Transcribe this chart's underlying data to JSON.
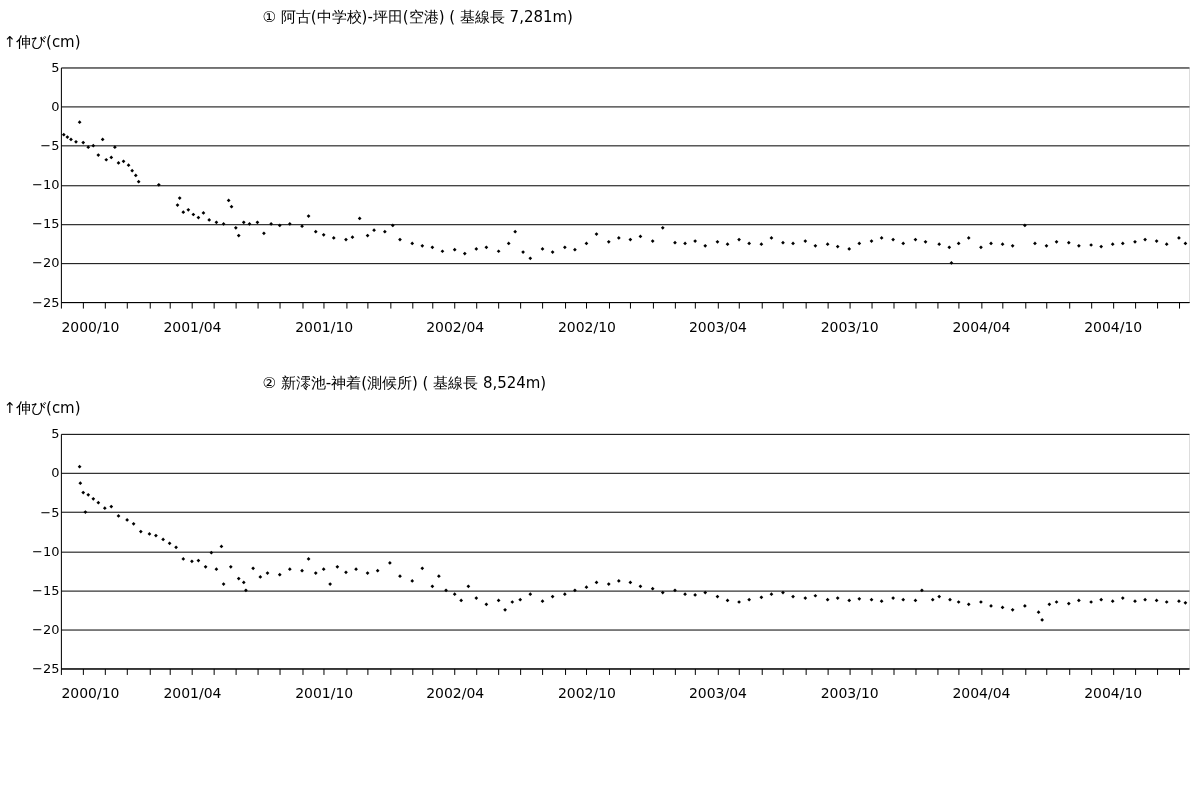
{
  "chart_data": [
    {
      "type": "scatter",
      "title": "①  阿古(中学校)-坪田(空港)          ( 基線長    7,281m)",
      "ylabel": "↑伸び(cm)",
      "marker": "diamond",
      "grid": "y",
      "xlim": [
        "2000-10-01",
        "2005-01-15"
      ],
      "ylim": [
        -25,
        5
      ],
      "yticks": [
        -25,
        -20,
        -15,
        -10,
        -5,
        0,
        5
      ],
      "xticks": [
        {
          "value": "2000-10",
          "label": "2000/10"
        },
        {
          "value": "2000-11",
          "label": null
        },
        {
          "value": "2000-12",
          "label": null
        },
        {
          "value": "2001-01",
          "label": null
        },
        {
          "value": "2001-02",
          "label": null
        },
        {
          "value": "2001-03",
          "label": null
        },
        {
          "value": "2001-04",
          "label": "2001/04"
        },
        {
          "value": "2001-05",
          "label": null
        },
        {
          "value": "2001-06",
          "label": null
        },
        {
          "value": "2001-07",
          "label": null
        },
        {
          "value": "2001-08",
          "label": null
        },
        {
          "value": "2001-09",
          "label": null
        },
        {
          "value": "2001-10",
          "label": "2001/10"
        },
        {
          "value": "2001-11",
          "label": null
        },
        {
          "value": "2001-12",
          "label": null
        },
        {
          "value": "2002-01",
          "label": null
        },
        {
          "value": "2002-02",
          "label": null
        },
        {
          "value": "2002-03",
          "label": null
        },
        {
          "value": "2002-04",
          "label": "2002/04"
        },
        {
          "value": "2002-05",
          "label": null
        },
        {
          "value": "2002-06",
          "label": null
        },
        {
          "value": "2002-07",
          "label": null
        },
        {
          "value": "2002-08",
          "label": null
        },
        {
          "value": "2002-09",
          "label": null
        },
        {
          "value": "2002-10",
          "label": "2002/10"
        },
        {
          "value": "2002-11",
          "label": null
        },
        {
          "value": "2002-12",
          "label": null
        },
        {
          "value": "2003-01",
          "label": null
        },
        {
          "value": "2003-02",
          "label": null
        },
        {
          "value": "2003-03",
          "label": null
        },
        {
          "value": "2003-04",
          "label": "2003/04"
        },
        {
          "value": "2003-05",
          "label": null
        },
        {
          "value": "2003-06",
          "label": null
        },
        {
          "value": "2003-07",
          "label": null
        },
        {
          "value": "2003-08",
          "label": null
        },
        {
          "value": "2003-09",
          "label": null
        },
        {
          "value": "2003-10",
          "label": "2003/10"
        },
        {
          "value": "2003-11",
          "label": null
        },
        {
          "value": "2003-12",
          "label": null
        },
        {
          "value": "2004-01",
          "label": null
        },
        {
          "value": "2004-02",
          "label": null
        },
        {
          "value": "2004-03",
          "label": null
        },
        {
          "value": "2004-04",
          "label": "2004/04"
        },
        {
          "value": "2004-05",
          "label": null
        },
        {
          "value": "2004-06",
          "label": null
        },
        {
          "value": "2004-07",
          "label": null
        },
        {
          "value": "2004-08",
          "label": null
        },
        {
          "value": "2004-09",
          "label": null
        },
        {
          "value": "2004-10",
          "label": "2004/10"
        },
        {
          "value": "2004-11",
          "label": null
        },
        {
          "value": "2004-12",
          "label": null
        },
        {
          "value": "2005-01",
          "label": null
        }
      ],
      "series": [
        {
          "color": "#000000",
          "x": [
            "2000-10-05",
            "2000-10-10",
            "2000-10-15",
            "2000-10-22",
            "2000-10-27",
            "2000-11-01",
            "2000-11-08",
            "2000-11-15",
            "2000-11-22",
            "2000-11-28",
            "2000-12-03",
            "2000-12-10",
            "2000-12-15",
            "2000-12-20",
            "2000-12-27",
            "2001-01-03",
            "2001-01-08",
            "2001-01-13",
            "2001-01-17",
            "2001-02-14",
            "2001-03-12",
            "2001-03-15",
            "2001-03-20",
            "2001-03-27",
            "2001-04-03",
            "2001-04-10",
            "2001-04-17",
            "2001-04-25",
            "2001-05-05",
            "2001-05-15",
            "2001-05-22",
            "2001-05-26",
            "2001-06-01",
            "2001-06-05",
            "2001-06-12",
            "2001-06-20",
            "2001-07-01",
            "2001-07-10",
            "2001-07-20",
            "2001-08-01",
            "2001-08-15",
            "2001-09-01",
            "2001-09-10",
            "2001-09-20",
            "2001-10-01",
            "2001-10-15",
            "2001-11-01",
            "2001-11-10",
            "2001-11-20",
            "2001-12-01",
            "2001-12-10",
            "2001-12-25",
            "2002-01-05",
            "2002-01-15",
            "2002-02-01",
            "2002-02-15",
            "2002-03-01",
            "2002-03-15",
            "2002-04-01",
            "2002-04-15",
            "2002-05-01",
            "2002-05-15",
            "2002-06-01",
            "2002-06-15",
            "2002-06-24",
            "2002-07-05",
            "2002-07-15",
            "2002-08-01",
            "2002-08-15",
            "2002-09-01",
            "2002-09-15",
            "2002-10-01",
            "2002-10-15",
            "2002-11-01",
            "2002-11-15",
            "2002-12-01",
            "2002-12-15",
            "2003-01-01",
            "2003-01-15",
            "2003-02-01",
            "2003-02-15",
            "2003-03-01",
            "2003-03-15",
            "2003-04-01",
            "2003-04-15",
            "2003-05-01",
            "2003-05-15",
            "2003-06-01",
            "2003-06-15",
            "2003-07-01",
            "2003-07-15",
            "2003-08-01",
            "2003-08-15",
            "2003-09-01",
            "2003-09-15",
            "2003-10-01",
            "2003-10-15",
            "2003-11-01",
            "2003-11-15",
            "2003-12-01",
            "2003-12-15",
            "2004-01-01",
            "2004-01-15",
            "2004-02-03",
            "2004-02-17",
            "2004-02-20",
            "2004-03-01",
            "2004-03-15",
            "2004-04-01",
            "2004-04-15",
            "2004-05-01",
            "2004-05-15",
            "2004-06-01",
            "2004-06-15",
            "2004-07-01",
            "2004-07-15",
            "2004-08-01",
            "2004-08-15",
            "2004-09-01",
            "2004-09-15",
            "2004-10-01",
            "2004-10-15",
            "2004-11-01",
            "2004-11-15",
            "2004-12-01",
            "2004-12-15",
            "2005-01-01",
            "2005-01-10"
          ],
          "values": [
            -3.6,
            -3.9,
            -4.2,
            -4.5,
            -2.0,
            -4.6,
            -5.2,
            -5.0,
            -6.2,
            -4.2,
            -6.8,
            -6.5,
            -5.2,
            -7.2,
            -7.0,
            -7.5,
            -8.2,
            -8.8,
            -9.6,
            -10.0,
            -12.6,
            -11.7,
            -13.5,
            -13.2,
            -13.8,
            -14.2,
            -13.6,
            -14.5,
            -14.8,
            -15.0,
            -12.0,
            -12.8,
            -15.5,
            -16.5,
            -14.8,
            -15.0,
            -14.8,
            -16.2,
            -15.0,
            -15.2,
            -15.0,
            -15.3,
            -14.0,
            -16.0,
            -16.4,
            -16.8,
            -17.0,
            -16.7,
            -14.3,
            -16.5,
            -15.8,
            -16.0,
            -15.2,
            -17.0,
            -17.5,
            -17.8,
            -18.0,
            -18.5,
            -18.3,
            -18.8,
            -18.2,
            -18.0,
            -18.5,
            -17.5,
            -16.0,
            -18.6,
            -19.4,
            -18.2,
            -18.6,
            -18.0,
            -18.3,
            -17.5,
            -16.3,
            -17.3,
            -16.8,
            -17.0,
            -16.6,
            -17.2,
            -15.5,
            -17.4,
            -17.5,
            -17.2,
            -17.8,
            -17.3,
            -17.6,
            -17.0,
            -17.5,
            -17.6,
            -16.8,
            -17.4,
            -17.5,
            -17.2,
            -17.8,
            -17.6,
            -17.9,
            -18.2,
            -17.5,
            -17.2,
            -16.8,
            -17.0,
            -17.5,
            -17.0,
            -17.3,
            -17.6,
            -18.0,
            -20.0,
            -17.5,
            -16.8,
            -18.0,
            -17.5,
            -17.6,
            -17.8,
            -15.2,
            -17.5,
            -17.8,
            -17.3,
            -17.4,
            -17.8,
            -17.7,
            -17.9,
            -17.6,
            -17.5,
            -17.3,
            -17.0,
            -17.2,
            -17.6,
            -16.8,
            -17.5
          ]
        }
      ]
    },
    {
      "type": "scatter",
      "title": "②  新澪池-神着(測候所)          ( 基線長    8,524m)",
      "ylabel": "↑伸び(cm)",
      "marker": "diamond",
      "grid": "y",
      "xlim": [
        "2000-10-01",
        "2005-01-15"
      ],
      "ylim": [
        -25,
        5
      ],
      "yticks": [
        -25,
        -20,
        -15,
        -10,
        -5,
        0,
        5
      ],
      "xticks": [
        {
          "value": "2000-10",
          "label": "2000/10"
        },
        {
          "value": "2000-11",
          "label": null
        },
        {
          "value": "2000-12",
          "label": null
        },
        {
          "value": "2001-01",
          "label": null
        },
        {
          "value": "2001-02",
          "label": null
        },
        {
          "value": "2001-03",
          "label": null
        },
        {
          "value": "2001-04",
          "label": "2001/04"
        },
        {
          "value": "2001-05",
          "label": null
        },
        {
          "value": "2001-06",
          "label": null
        },
        {
          "value": "2001-07",
          "label": null
        },
        {
          "value": "2001-08",
          "label": null
        },
        {
          "value": "2001-09",
          "label": null
        },
        {
          "value": "2001-10",
          "label": "2001/10"
        },
        {
          "value": "2001-11",
          "label": null
        },
        {
          "value": "2001-12",
          "label": null
        },
        {
          "value": "2002-01",
          "label": null
        },
        {
          "value": "2002-02",
          "label": null
        },
        {
          "value": "2002-03",
          "label": null
        },
        {
          "value": "2002-04",
          "label": "2002/04"
        },
        {
          "value": "2002-05",
          "label": null
        },
        {
          "value": "2002-06",
          "label": null
        },
        {
          "value": "2002-07",
          "label": null
        },
        {
          "value": "2002-08",
          "label": null
        },
        {
          "value": "2002-09",
          "label": null
        },
        {
          "value": "2002-10",
          "label": "2002/10"
        },
        {
          "value": "2002-11",
          "label": null
        },
        {
          "value": "2002-12",
          "label": null
        },
        {
          "value": "2003-01",
          "label": null
        },
        {
          "value": "2003-02",
          "label": null
        },
        {
          "value": "2003-03",
          "label": null
        },
        {
          "value": "2003-04",
          "label": "2003/04"
        },
        {
          "value": "2003-05",
          "label": null
        },
        {
          "value": "2003-06",
          "label": null
        },
        {
          "value": "2003-07",
          "label": null
        },
        {
          "value": "2003-08",
          "label": null
        },
        {
          "value": "2003-09",
          "label": null
        },
        {
          "value": "2003-10",
          "label": "2003/10"
        },
        {
          "value": "2003-11",
          "label": null
        },
        {
          "value": "2003-12",
          "label": null
        },
        {
          "value": "2004-01",
          "label": null
        },
        {
          "value": "2004-02",
          "label": null
        },
        {
          "value": "2004-03",
          "label": null
        },
        {
          "value": "2004-04",
          "label": "2004/04"
        },
        {
          "value": "2004-05",
          "label": null
        },
        {
          "value": "2004-06",
          "label": null
        },
        {
          "value": "2004-07",
          "label": null
        },
        {
          "value": "2004-08",
          "label": null
        },
        {
          "value": "2004-09",
          "label": null
        },
        {
          "value": "2004-10",
          "label": "2004/10"
        },
        {
          "value": "2004-11",
          "label": null
        },
        {
          "value": "2004-12",
          "label": null
        },
        {
          "value": "2005-01",
          "label": null
        }
      ],
      "series": [
        {
          "color": "#000000",
          "x": [
            "2000-10-27",
            "2000-10-28",
            "2000-11-01",
            "2000-11-04",
            "2000-11-08",
            "2000-11-15",
            "2000-11-22",
            "2000-12-01",
            "2000-12-10",
            "2000-12-20",
            "2001-01-01",
            "2001-01-10",
            "2001-01-20",
            "2001-02-01",
            "2001-02-10",
            "2001-02-20",
            "2001-03-01",
            "2001-03-10",
            "2001-03-20",
            "2001-04-01",
            "2001-04-10",
            "2001-04-20",
            "2001-04-28",
            "2001-05-05",
            "2001-05-12",
            "2001-05-15",
            "2001-05-25",
            "2001-06-05",
            "2001-06-12",
            "2001-06-15",
            "2001-06-25",
            "2001-07-05",
            "2001-07-15",
            "2001-08-01",
            "2001-08-15",
            "2001-09-01",
            "2001-09-10",
            "2001-09-20",
            "2001-10-01",
            "2001-10-10",
            "2001-10-20",
            "2001-11-01",
            "2001-11-15",
            "2001-12-01",
            "2001-12-15",
            "2002-01-01",
            "2002-01-15",
            "2002-02-01",
            "2002-02-15",
            "2002-03-01",
            "2002-03-10",
            "2002-03-20",
            "2002-04-01",
            "2002-04-10",
            "2002-04-20",
            "2002-05-01",
            "2002-05-15",
            "2002-06-01",
            "2002-06-10",
            "2002-06-20",
            "2002-07-01",
            "2002-07-15",
            "2002-08-01",
            "2002-08-15",
            "2002-09-01",
            "2002-09-15",
            "2002-10-01",
            "2002-10-15",
            "2002-11-01",
            "2002-11-15",
            "2002-12-01",
            "2002-12-15",
            "2003-01-01",
            "2003-01-15",
            "2003-02-01",
            "2003-02-15",
            "2003-03-01",
            "2003-03-15",
            "2003-04-01",
            "2003-04-15",
            "2003-05-01",
            "2003-05-15",
            "2003-06-01",
            "2003-06-15",
            "2003-07-01",
            "2003-07-15",
            "2003-08-01",
            "2003-08-15",
            "2003-09-01",
            "2003-09-15",
            "2003-10-01",
            "2003-10-15",
            "2003-11-01",
            "2003-11-15",
            "2003-12-01",
            "2003-12-15",
            "2004-01-01",
            "2004-01-10",
            "2004-01-25",
            "2004-02-03",
            "2004-02-18",
            "2004-03-01",
            "2004-03-15",
            "2004-04-01",
            "2004-04-15",
            "2004-05-01",
            "2004-05-15",
            "2004-06-01",
            "2004-06-20",
            "2004-06-25",
            "2004-07-05",
            "2004-07-15",
            "2004-08-01",
            "2004-08-15",
            "2004-09-01",
            "2004-09-15",
            "2004-10-01",
            "2004-10-15",
            "2004-11-01",
            "2004-11-15",
            "2004-12-01",
            "2004-12-15",
            "2005-01-01",
            "2005-01-10"
          ],
          "values": [
            0.8,
            -1.3,
            -2.5,
            -5.0,
            -2.8,
            -3.3,
            -3.8,
            -4.5,
            -4.3,
            -5.5,
            -6.0,
            -6.5,
            -7.5,
            -7.8,
            -8.0,
            -8.5,
            -9.0,
            -9.5,
            -11.0,
            -11.3,
            -11.2,
            -12.0,
            -10.2,
            -12.3,
            -9.4,
            -14.2,
            -12.0,
            -13.5,
            -14.0,
            -15.0,
            -12.2,
            -13.3,
            -12.8,
            -13.0,
            -12.3,
            -12.5,
            -11.0,
            -12.8,
            -12.3,
            -14.2,
            -12.0,
            -12.7,
            -12.3,
            -12.8,
            -12.5,
            -11.5,
            -13.2,
            -13.8,
            -12.2,
            -14.5,
            -13.2,
            -15.0,
            -15.5,
            -16.3,
            -14.5,
            -16.0,
            -16.8,
            -16.3,
            -17.5,
            -16.5,
            -16.2,
            -15.5,
            -16.4,
            -15.8,
            -15.5,
            -15.0,
            -14.6,
            -14.0,
            -14.2,
            -13.8,
            -14.0,
            -14.5,
            -14.8,
            -15.3,
            -15.0,
            -15.5,
            -15.6,
            -15.3,
            -15.8,
            -16.3,
            -16.5,
            -16.2,
            -15.9,
            -15.5,
            -15.3,
            -15.8,
            -16.0,
            -15.7,
            -16.2,
            -16.0,
            -16.3,
            -16.1,
            -16.2,
            -16.4,
            -16.0,
            -16.2,
            -16.3,
            -15.0,
            -16.2,
            -15.8,
            -16.2,
            -16.5,
            -16.8,
            -16.5,
            -17.0,
            -17.2,
            -17.5,
            -17.0,
            -17.8,
            -18.8,
            -16.8,
            -16.5,
            -16.7,
            -16.3,
            -16.5,
            -16.2,
            -16.4,
            -16.0,
            -16.4,
            -16.2,
            -16.3,
            -16.5,
            -16.4,
            -16.6
          ]
        }
      ]
    }
  ]
}
